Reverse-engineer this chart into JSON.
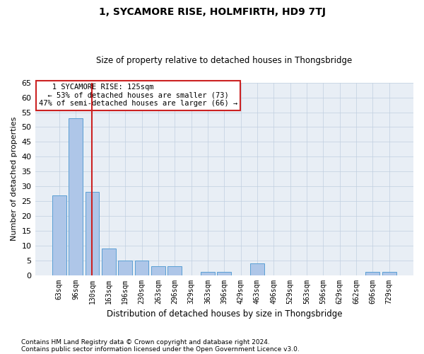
{
  "title": "1, SYCAMORE RISE, HOLMFIRTH, HD9 7TJ",
  "subtitle": "Size of property relative to detached houses in Thongsbridge",
  "xlabel": "Distribution of detached houses by size in Thongsbridge",
  "ylabel": "Number of detached properties",
  "footnote1": "Contains HM Land Registry data © Crown copyright and database right 2024.",
  "footnote2": "Contains public sector information licensed under the Open Government Licence v3.0.",
  "annotation_line1": "1 SYCAMORE RISE: 125sqm",
  "annotation_line2": "← 53% of detached houses are smaller (73)",
  "annotation_line3": "47% of semi-detached houses are larger (66) →",
  "categories": [
    "63sqm",
    "96sqm",
    "130sqm",
    "163sqm",
    "196sqm",
    "230sqm",
    "263sqm",
    "296sqm",
    "329sqm",
    "363sqm",
    "396sqm",
    "429sqm",
    "463sqm",
    "496sqm",
    "529sqm",
    "563sqm",
    "596sqm",
    "629sqm",
    "662sqm",
    "696sqm",
    "729sqm"
  ],
  "values": [
    27,
    53,
    28,
    9,
    5,
    5,
    3,
    3,
    0,
    1,
    1,
    0,
    4,
    0,
    0,
    0,
    0,
    0,
    0,
    1,
    1
  ],
  "bar_color": "#aec6e8",
  "bar_edge_color": "#5a9fd4",
  "highlight_bar_index": 2,
  "annotation_box_color": "#ffffff",
  "annotation_box_edge_color": "#cc2222",
  "highlight_line_color": "#cc2222",
  "background_color": "#ffffff",
  "plot_bg_color": "#e8eef5",
  "grid_color": "#c0cfe0",
  "ylim": [
    0,
    65
  ],
  "yticks": [
    0,
    5,
    10,
    15,
    20,
    25,
    30,
    35,
    40,
    45,
    50,
    55,
    60,
    65
  ],
  "property_bar_index": 2,
  "title_fontsize": 10,
  "subtitle_fontsize": 8.5
}
